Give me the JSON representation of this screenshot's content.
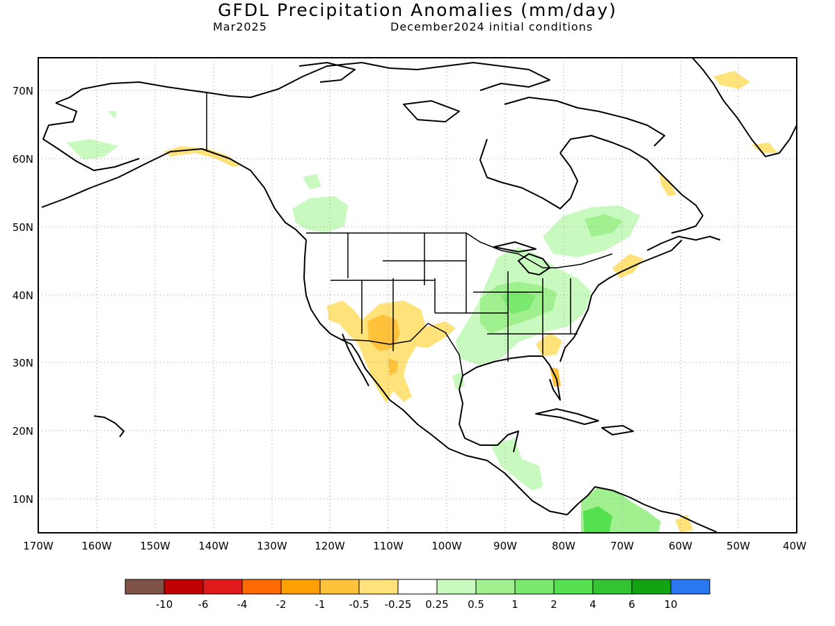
{
  "header": {
    "title": "GFDL Precipitation Anomalies (mm/day)",
    "month": "Mar2025",
    "init": "December2024 initial conditions"
  },
  "axes": {
    "lon_labels": [
      "170W",
      "160W",
      "150W",
      "140W",
      "130W",
      "120W",
      "110W",
      "100W",
      "90W",
      "80W",
      "70W",
      "60W",
      "50W",
      "40W"
    ],
    "lat_labels": [
      "70N",
      "60N",
      "50N",
      "40N",
      "30N",
      "20N",
      "10N"
    ]
  },
  "colorbar": {
    "colors": [
      "#7f5345",
      "#c00000",
      "#e01a1a",
      "#ff6a00",
      "#ff9f00",
      "#ffc23a",
      "#ffe27a",
      "#ffffff",
      "#c8fac0",
      "#a0f090",
      "#7be870",
      "#55e050",
      "#33c433",
      "#12a312",
      "#2a78f0"
    ],
    "labels": [
      "-10",
      "-6",
      "-4",
      "-2",
      "-1",
      "-0.5",
      "-0.25",
      "0.25",
      "0.5",
      "1",
      "2",
      "4",
      "6",
      "10"
    ]
  },
  "map_data": {
    "region": "North America",
    "lon_range": [
      -170,
      -40
    ],
    "lat_range": [
      5,
      75
    ],
    "anomaly_areas": [
      {
        "region": "Southwest US / Arizona-New Mexico",
        "category": "-0.5 to -1"
      },
      {
        "region": "Western Mexico",
        "category": "-0.25 to -0.5"
      },
      {
        "region": "Southern California",
        "category": "-0.25 to -0.5"
      },
      {
        "region": "Southern Alaska coast",
        "category": "-0.25 to -0.5"
      },
      {
        "region": "Georgia / Florida",
        "category": "-0.25 to -0.5"
      },
      {
        "region": "Greenland coast",
        "category": "-0.25 to -0.5"
      },
      {
        "region": "Ohio / Mississippi Valley",
        "category": "0.25 to 1"
      },
      {
        "region": "Quebec / Ontario",
        "category": "0.25 to 1"
      },
      {
        "region": "Pacific Northwest / British Columbia",
        "category": "0.25 to 1"
      },
      {
        "region": "Northern South America",
        "category": "0.5 to 2"
      },
      {
        "region": "Central America",
        "category": "0.25 to 0.5"
      }
    ]
  }
}
